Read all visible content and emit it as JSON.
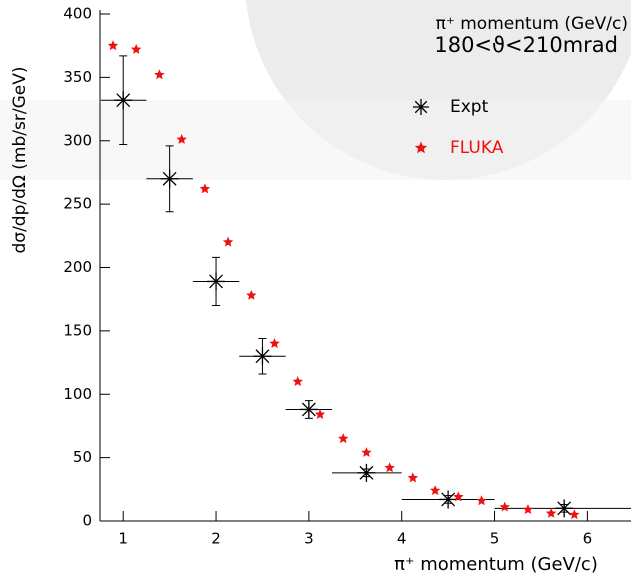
{
  "chart_data": {
    "type": "scatter",
    "annotation": [
      "π⁺ momentum (GeV/c)",
      "180<ϑ<210mrad"
    ],
    "x_label": "π⁺ momentum (GeV/c)",
    "y_label": "dσ/dp/dΩ (mb/sr/GeV)",
    "xlim": [
      0.75,
      6.47
    ],
    "ylim": [
      0,
      400
    ],
    "xticks": [
      1,
      2,
      3,
      4,
      5,
      6
    ],
    "yticks": [
      0,
      50,
      100,
      150,
      200,
      250,
      300,
      350,
      400
    ],
    "series": [
      {
        "name": "Expt",
        "color": "#000000",
        "marker": "asterisk",
        "x": [
          1.0,
          1.5,
          2.0,
          2.5,
          3.0,
          3.62,
          4.5,
          5.75
        ],
        "values": [
          332,
          270,
          189,
          130,
          88,
          38,
          17,
          10
        ],
        "yerr": [
          35,
          26,
          19,
          14,
          7,
          3,
          3,
          3
        ],
        "x_low": [
          0.76,
          1.25,
          1.75,
          2.25,
          2.75,
          3.25,
          4.0,
          5.0
        ],
        "x_high": [
          1.25,
          1.75,
          2.25,
          2.75,
          3.25,
          4.0,
          5.0,
          6.47
        ]
      },
      {
        "name": "FLUKA",
        "color": "#ee1111",
        "marker": "star",
        "x": [
          0.89,
          1.14,
          1.39,
          1.63,
          1.88,
          2.13,
          2.38,
          2.63,
          2.88,
          3.12,
          3.37,
          3.62,
          3.87,
          4.12,
          4.36,
          4.61,
          4.86,
          5.11,
          5.36,
          5.61,
          5.86
        ],
        "values": [
          375,
          372,
          352,
          301,
          262,
          220,
          178,
          140,
          110,
          84,
          65,
          54,
          42,
          34,
          24,
          19,
          16,
          11,
          9,
          6,
          5
        ]
      }
    ]
  }
}
